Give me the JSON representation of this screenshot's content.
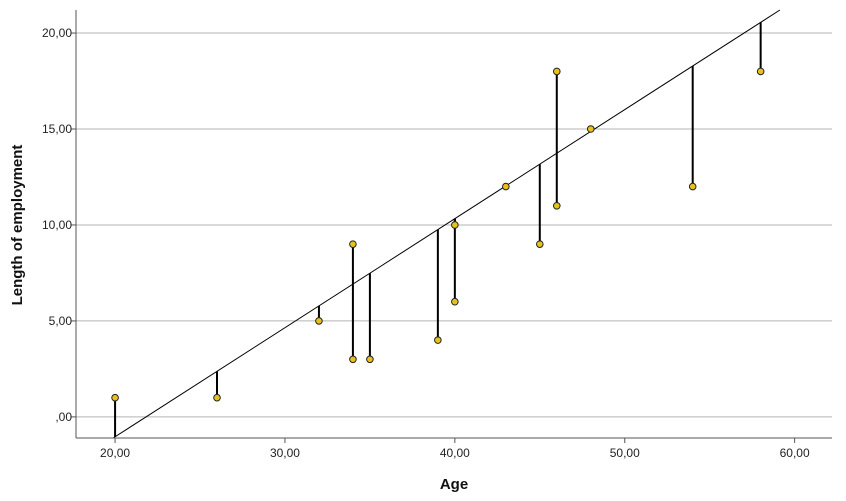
{
  "chart_data": {
    "type": "scatter",
    "xlabel": "Age",
    "ylabel": "Length of employment",
    "xlim": [
      17.7,
      62.2
    ],
    "ylim": [
      -1.1,
      21.2
    ],
    "x_ticks": [
      20,
      30,
      40,
      50,
      60
    ],
    "x_tick_labels": [
      "20,00",
      "30,00",
      "40,00",
      "50,00",
      "60,00"
    ],
    "y_ticks": [
      0,
      5,
      10,
      15,
      20
    ],
    "y_tick_labels": [
      ",00",
      "5,00",
      "10,00",
      "15,00",
      "20,00"
    ],
    "grid": {
      "horizontal": true,
      "vertical": false
    },
    "fit_line": {
      "intercept": -12.4,
      "slope": 0.5682
    },
    "points": [
      {
        "x": 20,
        "y": 1
      },
      {
        "x": 26,
        "y": 1
      },
      {
        "x": 32,
        "y": 5
      },
      {
        "x": 34,
        "y": 9
      },
      {
        "x": 34,
        "y": 3
      },
      {
        "x": 35,
        "y": 3
      },
      {
        "x": 39,
        "y": 4
      },
      {
        "x": 40,
        "y": 10
      },
      {
        "x": 40,
        "y": 6
      },
      {
        "x": 43,
        "y": 12
      },
      {
        "x": 45,
        "y": 9
      },
      {
        "x": 46,
        "y": 18
      },
      {
        "x": 46,
        "y": 11
      },
      {
        "x": 48,
        "y": 15
      },
      {
        "x": 54,
        "y": 12
      },
      {
        "x": 58,
        "y": 18
      }
    ],
    "colors": {
      "point_fill": "#e8c21c",
      "point_stroke": "#222222",
      "residual": "#000000",
      "fit_line": "#000000",
      "grid": "#b4b4b4",
      "axis": "#555555"
    }
  }
}
